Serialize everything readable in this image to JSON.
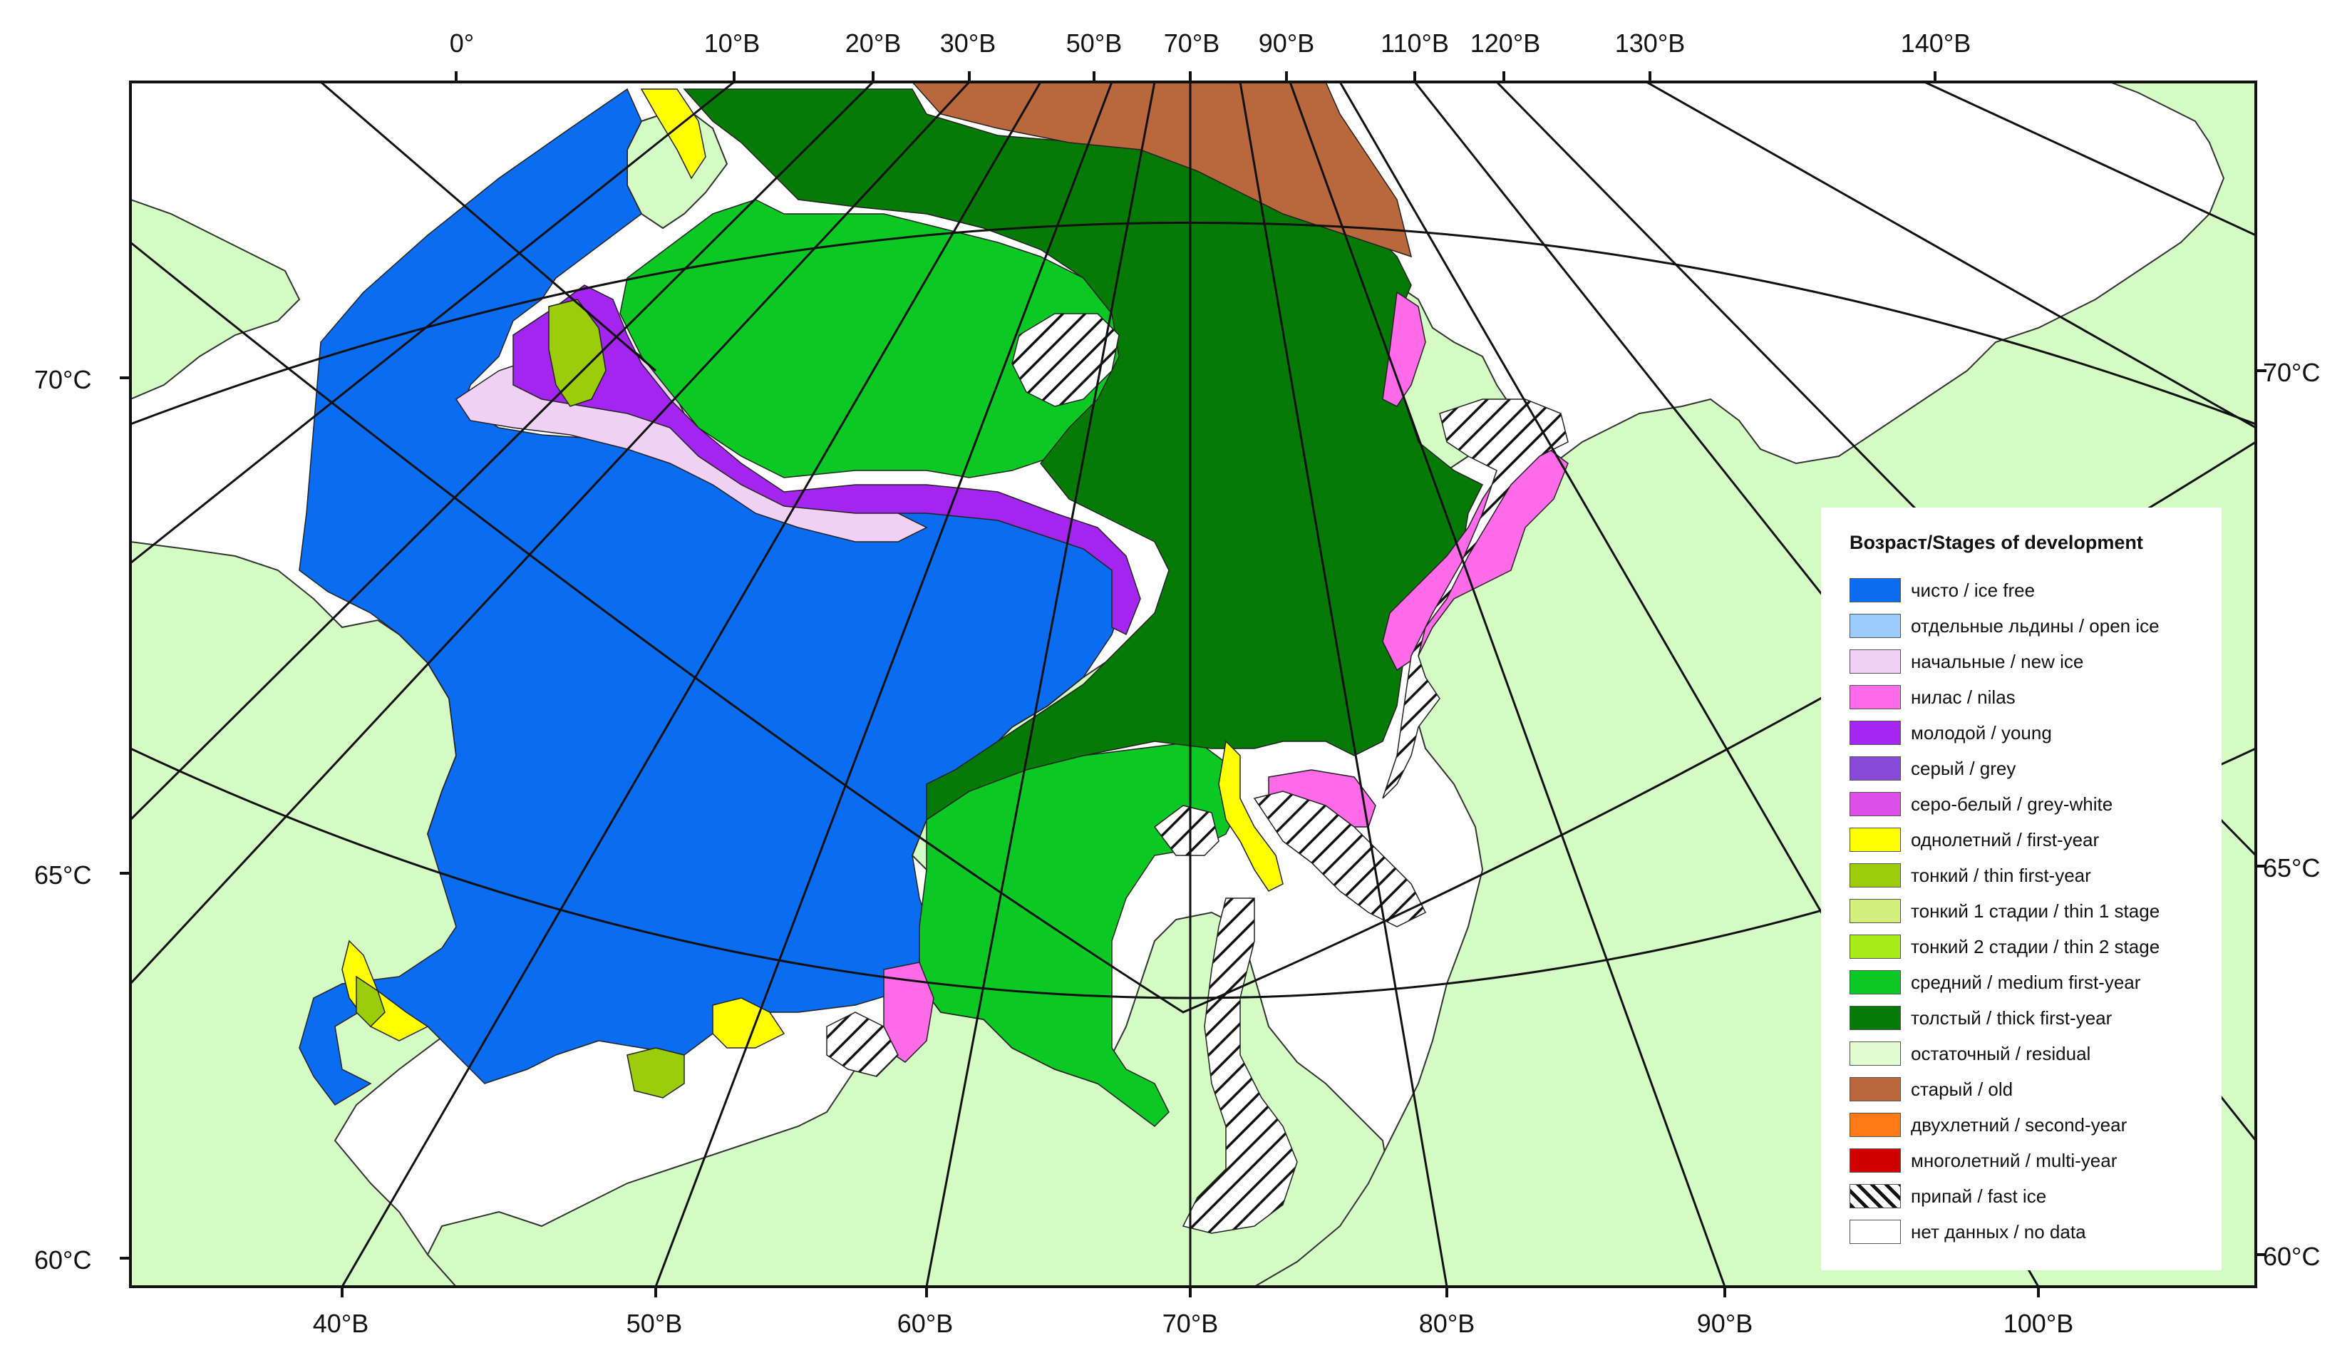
{
  "map": {
    "lon_labels_top": [
      "0°",
      "10°В",
      "20°В",
      "30°В",
      "50°В",
      "70°В",
      "90°В",
      "110°В",
      "120°В",
      "130°В",
      "140°В"
    ],
    "lon_labels_bottom": [
      "40°В",
      "50°В",
      "60°В",
      "70°В",
      "80°В",
      "90°В",
      "100°В"
    ],
    "lat_labels_left": [
      "70°С",
      "65°С",
      "60°С"
    ],
    "lat_labels_right": [
      "70°С",
      "65°С",
      "60°С"
    ],
    "colors": {
      "land": "#d4fbc4",
      "ice_free": "#0a6cf0",
      "new_ice": "#f0d0f4",
      "nilas": "#ff6ae8",
      "young": "#a424f0",
      "first_year": "#ffff00",
      "thin_first_year": "#9ccc0a",
      "medium_first_year": "#0cc824",
      "thick_first_year": "#067a06",
      "old": "#b8683c",
      "graticule": "#111111"
    }
  },
  "legend": {
    "title": "Возраст/Stages of development",
    "items": [
      {
        "label": "чисто / ice free",
        "color": "#0a6cf0"
      },
      {
        "label": "отдельные льдины / open ice",
        "color": "#9cccff"
      },
      {
        "label": "начальные / new ice",
        "color": "#f0d0f4"
      },
      {
        "label": "нилас / nilas",
        "color": "#ff6ae8"
      },
      {
        "label": "молодой / young",
        "color": "#a424f0"
      },
      {
        "label": "серый / grey",
        "color": "#8848d8"
      },
      {
        "label": "серо-белый / grey-white",
        "color": "#dc50e8"
      },
      {
        "label": "однолетний / first-year",
        "color": "#ffff00"
      },
      {
        "label": "тонкий / thin first-year",
        "color": "#9ccc0a"
      },
      {
        "label": "тонкий 1 стадии / thin 1 stage",
        "color": "#d4f07c"
      },
      {
        "label": "тонкий 2 стадии / thin 2 stage",
        "color": "#a8ec18"
      },
      {
        "label": "средний / medium first-year",
        "color": "#0cc824"
      },
      {
        "label": "толстый / thick first-year",
        "color": "#067a06"
      },
      {
        "label": "остаточный / residual",
        "color": "#e0fcd0"
      },
      {
        "label": "старый / old",
        "color": "#b8683c"
      },
      {
        "label": "двухлетний / second-year",
        "color": "#ff7a14"
      },
      {
        "label": "многолетний / multi-year",
        "color": "#d00000"
      },
      {
        "label": "припай / fast ice",
        "color": "hatch"
      },
      {
        "label": "нет данных / no data",
        "color": "#ffffff"
      }
    ]
  }
}
